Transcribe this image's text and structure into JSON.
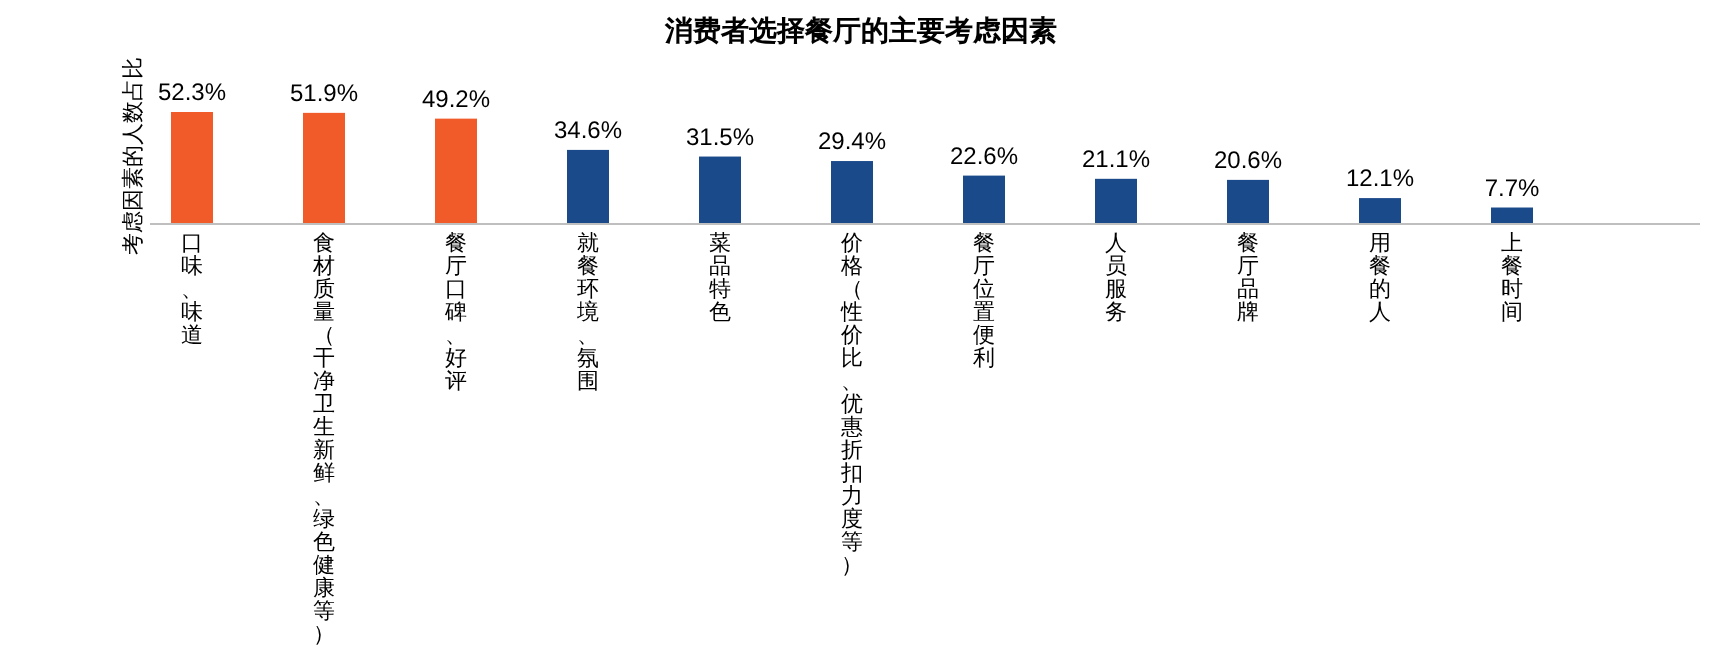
{
  "chart_data": {
    "type": "bar",
    "title": "消费者选择餐厅的主要考虑因素",
    "ylabel": "考虑因素的人数占比",
    "categories": [
      "口味、味道",
      "食材质量（干净卫生新鲜、绿色健康等）",
      "餐厅口碑、好评",
      "就餐环境、氛围",
      "菜品特色",
      "价格（性价比、优惠折扣力度等）",
      "餐厅位置便利",
      "人员服务",
      "餐厅品牌",
      "用餐的人",
      "上餐时间"
    ],
    "values": [
      52.3,
      51.9,
      49.2,
      34.6,
      31.5,
      29.4,
      22.6,
      21.1,
      20.6,
      12.1,
      7.7
    ],
    "colors": [
      "#f15a29",
      "#f15a29",
      "#f15a29",
      "#1b4a8a",
      "#1b4a8a",
      "#1b4a8a",
      "#1b4a8a",
      "#1b4a8a",
      "#1b4a8a",
      "#1b4a8a",
      "#1b4a8a"
    ],
    "value_labels": [
      "52.3%",
      "51.9%",
      "49.2%",
      "34.6%",
      "31.5%",
      "29.4%",
      "22.6%",
      "21.1%",
      "20.6%",
      "12.1%",
      "7.7%"
    ],
    "data_labels": false
  }
}
